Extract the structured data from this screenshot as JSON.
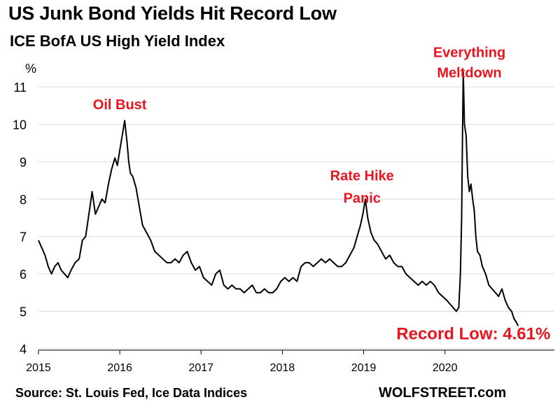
{
  "title": "US Junk Bond Yields Hit Record Low",
  "subtitle": "ICE BofA US High Yield Index",
  "source": "Source: St. Louis Fed, Ice Data Indices",
  "brand": "WOLFSTREET.com",
  "colors": {
    "line": "#000000",
    "annotation": "#e8141e",
    "grid": "#d9d9d9",
    "axis": "#000000"
  },
  "chart_data": {
    "type": "line",
    "title": "US Junk Bond Yields Hit Record Low",
    "subtitle": "ICE BofA US High Yield Index",
    "ylabel": "%",
    "xlabel": "",
    "ylim": [
      4,
      11.5
    ],
    "xlim": [
      2015,
      2020.95
    ],
    "grid": "horizontal",
    "yticks": [
      4,
      5,
      6,
      7,
      8,
      9,
      10,
      11
    ],
    "xticks": [
      2015,
      2016,
      2017,
      2018,
      2019,
      2020
    ],
    "series": [
      {
        "x": [
          2015.0,
          2015.04,
          2015.08,
          2015.12,
          2015.16,
          2015.2,
          2015.24,
          2015.28,
          2015.32,
          2015.36,
          2015.4,
          2015.45,
          2015.5,
          2015.54,
          2015.58,
          2015.62,
          2015.66,
          2015.7,
          2015.74,
          2015.78,
          2015.82,
          2015.86,
          2015.9,
          2015.94,
          2015.97,
          2016.0,
          2016.03,
          2016.06,
          2016.09,
          2016.11,
          2016.13,
          2016.16,
          2016.2,
          2016.24,
          2016.28,
          2016.33,
          2016.38,
          2016.43,
          2016.48,
          2016.53,
          2016.58,
          2016.63,
          2016.68,
          2016.73,
          2016.78,
          2016.83,
          2016.88,
          2016.93,
          2016.98,
          2017.03,
          2017.08,
          2017.13,
          2017.18,
          2017.23,
          2017.28,
          2017.33,
          2017.38,
          2017.43,
          2017.48,
          2017.53,
          2017.58,
          2017.63,
          2017.68,
          2017.73,
          2017.78,
          2017.83,
          2017.88,
          2017.93,
          2017.98,
          2018.03,
          2018.08,
          2018.13,
          2018.18,
          2018.23,
          2018.28,
          2018.33,
          2018.38,
          2018.43,
          2018.48,
          2018.53,
          2018.58,
          2018.63,
          2018.68,
          2018.73,
          2018.78,
          2018.83,
          2018.88,
          2018.92,
          2018.96,
          2018.99,
          2019.02,
          2019.05,
          2019.09,
          2019.13,
          2019.17,
          2019.22,
          2019.27,
          2019.32,
          2019.37,
          2019.42,
          2019.47,
          2019.52,
          2019.57,
          2019.62,
          2019.67,
          2019.72,
          2019.77,
          2019.82,
          2019.87,
          2019.92,
          2019.97,
          2020.02,
          2020.06,
          2020.1,
          2020.14,
          2020.17,
          2020.19,
          2020.205,
          2020.215,
          2020.225,
          2020.24,
          2020.26,
          2020.28,
          2020.3,
          2020.32,
          2020.34,
          2020.36,
          2020.38,
          2020.4,
          2020.43,
          2020.46,
          2020.5,
          2020.54,
          2020.58,
          2020.62,
          2020.66,
          2020.7,
          2020.74,
          2020.78,
          2020.82,
          2020.85,
          2020.88,
          2020.9
        ],
        "y": [
          6.9,
          6.7,
          6.5,
          6.2,
          6.0,
          6.2,
          6.3,
          6.1,
          6.0,
          5.9,
          6.1,
          6.3,
          6.4,
          6.9,
          7.0,
          7.6,
          8.2,
          7.6,
          7.8,
          8.0,
          7.9,
          8.4,
          8.8,
          9.1,
          8.9,
          9.3,
          9.7,
          10.1,
          9.5,
          9.0,
          8.7,
          8.6,
          8.3,
          7.8,
          7.3,
          7.1,
          6.9,
          6.6,
          6.5,
          6.4,
          6.3,
          6.3,
          6.4,
          6.3,
          6.5,
          6.6,
          6.3,
          6.1,
          6.2,
          5.9,
          5.8,
          5.7,
          6.0,
          6.1,
          5.7,
          5.6,
          5.7,
          5.6,
          5.6,
          5.5,
          5.6,
          5.7,
          5.5,
          5.5,
          5.6,
          5.5,
          5.5,
          5.6,
          5.8,
          5.9,
          5.8,
          5.9,
          5.8,
          6.2,
          6.3,
          6.3,
          6.2,
          6.3,
          6.4,
          6.3,
          6.4,
          6.3,
          6.2,
          6.2,
          6.3,
          6.5,
          6.7,
          7.0,
          7.3,
          7.6,
          8.0,
          7.5,
          7.1,
          6.9,
          6.8,
          6.6,
          6.4,
          6.5,
          6.3,
          6.2,
          6.2,
          6.0,
          5.9,
          5.8,
          5.7,
          5.8,
          5.7,
          5.8,
          5.7,
          5.5,
          5.4,
          5.3,
          5.2,
          5.1,
          5.0,
          5.1,
          6.0,
          7.5,
          9.5,
          11.4,
          10.0,
          9.7,
          8.6,
          8.2,
          8.4,
          8.0,
          7.7,
          7.0,
          6.6,
          6.5,
          6.2,
          6.0,
          5.7,
          5.6,
          5.5,
          5.4,
          5.6,
          5.3,
          5.1,
          5.0,
          4.8,
          4.7,
          4.61
        ]
      }
    ],
    "annotations": [
      {
        "text": "Oil Bust",
        "x": 2016.0,
        "y": 10.4
      },
      {
        "text": "Rate Hike",
        "x": 2018.98,
        "y": 8.5
      },
      {
        "text": "Panic",
        "x": 2018.98,
        "y": 7.9
      },
      {
        "text": "Everything",
        "x": 2020.3,
        "y": 11.8
      },
      {
        "text": "Meltdown",
        "x": 2020.3,
        "y": 11.25
      },
      {
        "text": "Record Low: 4.61%",
        "x": 2020.35,
        "y": 4.25
      }
    ]
  }
}
